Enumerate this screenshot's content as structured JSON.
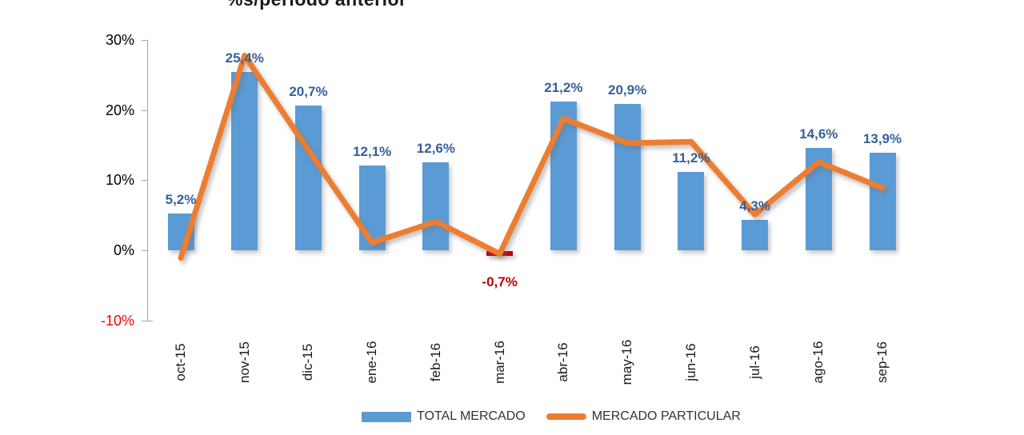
{
  "chart_data": {
    "type": "combo",
    "title": "%s/periodo anterior",
    "categories": [
      "oct-15",
      "nov-15",
      "dic-15",
      "ene-16",
      "feb-16",
      "mar-16",
      "abr-16",
      "may-16",
      "jun-16",
      "jul-16",
      "ago-16",
      "sep-16"
    ],
    "series": [
      {
        "name": "TOTAL MERCADO",
        "type": "bar",
        "color": "#5B9BD5",
        "negative_color": "#C00000",
        "label_color": "#35609B",
        "label_negative_color": "#C00000",
        "values": [
          5.2,
          25.4,
          20.7,
          12.1,
          12.6,
          -0.7,
          21.2,
          20.9,
          11.2,
          4.3,
          14.6,
          13.9
        ],
        "labels": [
          "5,2%",
          "25,4%",
          "20,7%",
          "12,1%",
          "12,6%",
          "-0,7%",
          "21,2%",
          "20,9%",
          "11,2%",
          "4,3%",
          "14,6%",
          "13,9%"
        ]
      },
      {
        "name": "MERCADO PARTICULAR",
        "type": "line",
        "color": "#ED7D31",
        "values": [
          -1.1,
          27.8,
          14.3,
          1.1,
          4.1,
          -0.5,
          18.8,
          15.3,
          15.5,
          5.1,
          12.6,
          8.9
        ]
      }
    ],
    "y_axis": {
      "ticks": [
        {
          "label": "30%",
          "value": 30,
          "color": "#000000"
        },
        {
          "label": "20%",
          "value": 20,
          "color": "#000000"
        },
        {
          "label": "10%",
          "value": 10,
          "color": "#000000"
        },
        {
          "label": "0%",
          "value": 0,
          "color": "#000000"
        },
        {
          "label": "-10%",
          "value": -10,
          "color": "#FF0000"
        }
      ],
      "axis_color": "#A6A6A6"
    },
    "ylim": [
      -10,
      30
    ],
    "grid": false,
    "legend_position": "bottom"
  }
}
